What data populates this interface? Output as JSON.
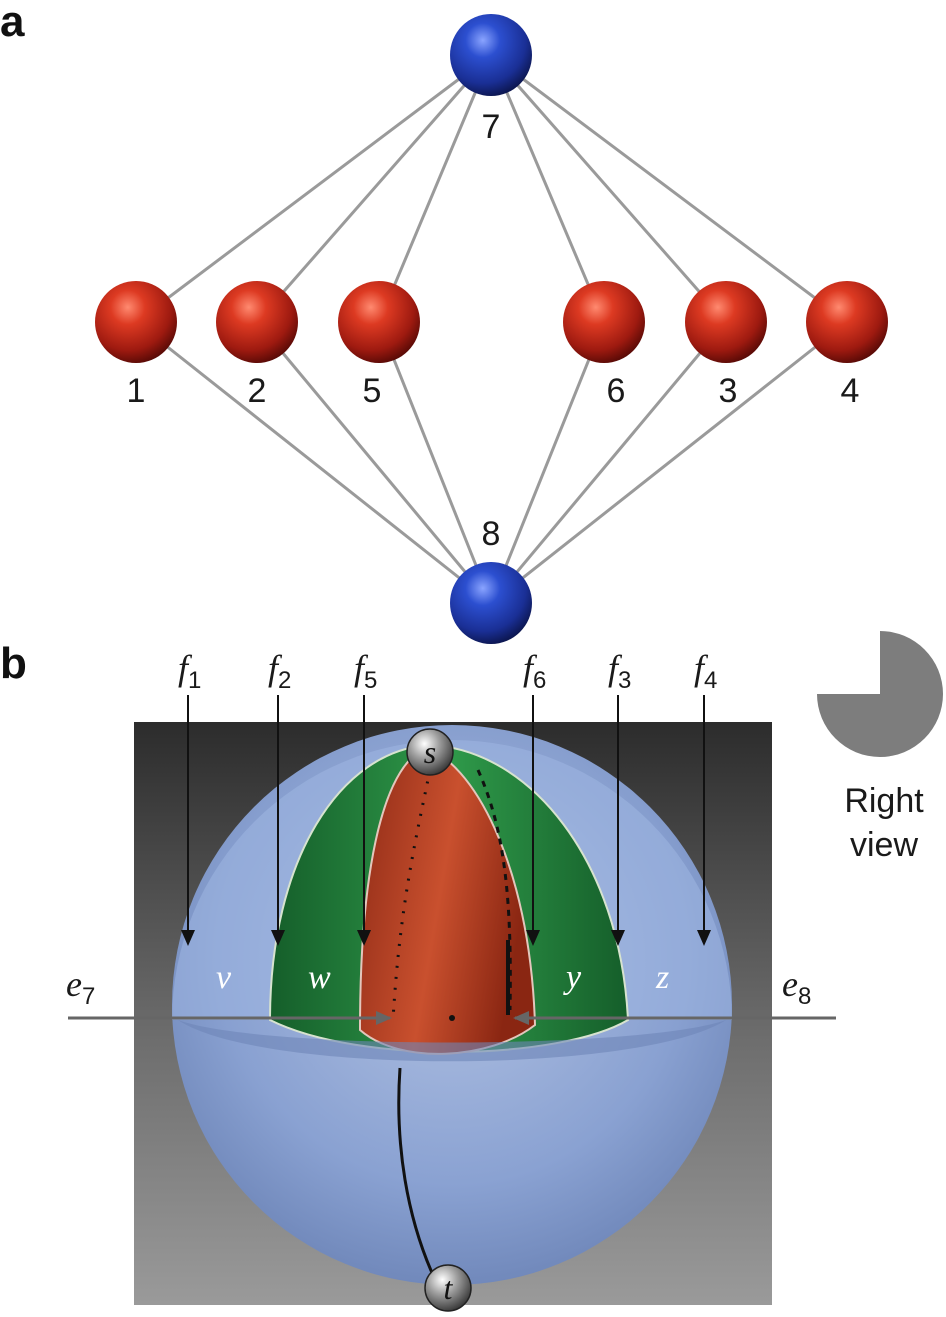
{
  "panel_a": {
    "letter": "a",
    "nodes": [
      {
        "id": "7",
        "label": "7",
        "color": "blue"
      },
      {
        "id": "1",
        "label": "1",
        "color": "red"
      },
      {
        "id": "2",
        "label": "2",
        "color": "red"
      },
      {
        "id": "5",
        "label": "5",
        "color": "red"
      },
      {
        "id": "6",
        "label": "6",
        "color": "red"
      },
      {
        "id": "3",
        "label": "3",
        "color": "red"
      },
      {
        "id": "4",
        "label": "4",
        "color": "red"
      },
      {
        "id": "8",
        "label": "8",
        "color": "blue"
      }
    ],
    "edges": [
      [
        "7",
        "1"
      ],
      [
        "7",
        "2"
      ],
      [
        "7",
        "5"
      ],
      [
        "7",
        "6"
      ],
      [
        "7",
        "3"
      ],
      [
        "7",
        "4"
      ],
      [
        "8",
        "1"
      ],
      [
        "8",
        "2"
      ],
      [
        "8",
        "5"
      ],
      [
        "8",
        "6"
      ],
      [
        "8",
        "3"
      ],
      [
        "8",
        "4"
      ]
    ]
  },
  "panel_b": {
    "letter": "b",
    "faces": [
      {
        "letter": "f",
        "sub": "1"
      },
      {
        "letter": "f",
        "sub": "2"
      },
      {
        "letter": "f",
        "sub": "5"
      },
      {
        "letter": "f",
        "sub": "6"
      },
      {
        "letter": "f",
        "sub": "3"
      },
      {
        "letter": "f",
        "sub": "4"
      }
    ],
    "edges": [
      {
        "letter": "e",
        "sub": "7"
      },
      {
        "letter": "e",
        "sub": "8"
      }
    ],
    "regions": [
      "v",
      "w",
      "y",
      "z"
    ],
    "source": "s",
    "sink": "t",
    "view_label_line1": "Right",
    "view_label_line2": "view"
  },
  "colors": {
    "red_node": "#c0281a",
    "blue_node": "#1f3fa8",
    "edge_gray": "#9a9a9a",
    "sphere_blue": "#8ea8d8",
    "green_region": "#2e8a42",
    "red_region": "#b33a22",
    "view_icon": "#7d7d7d"
  }
}
